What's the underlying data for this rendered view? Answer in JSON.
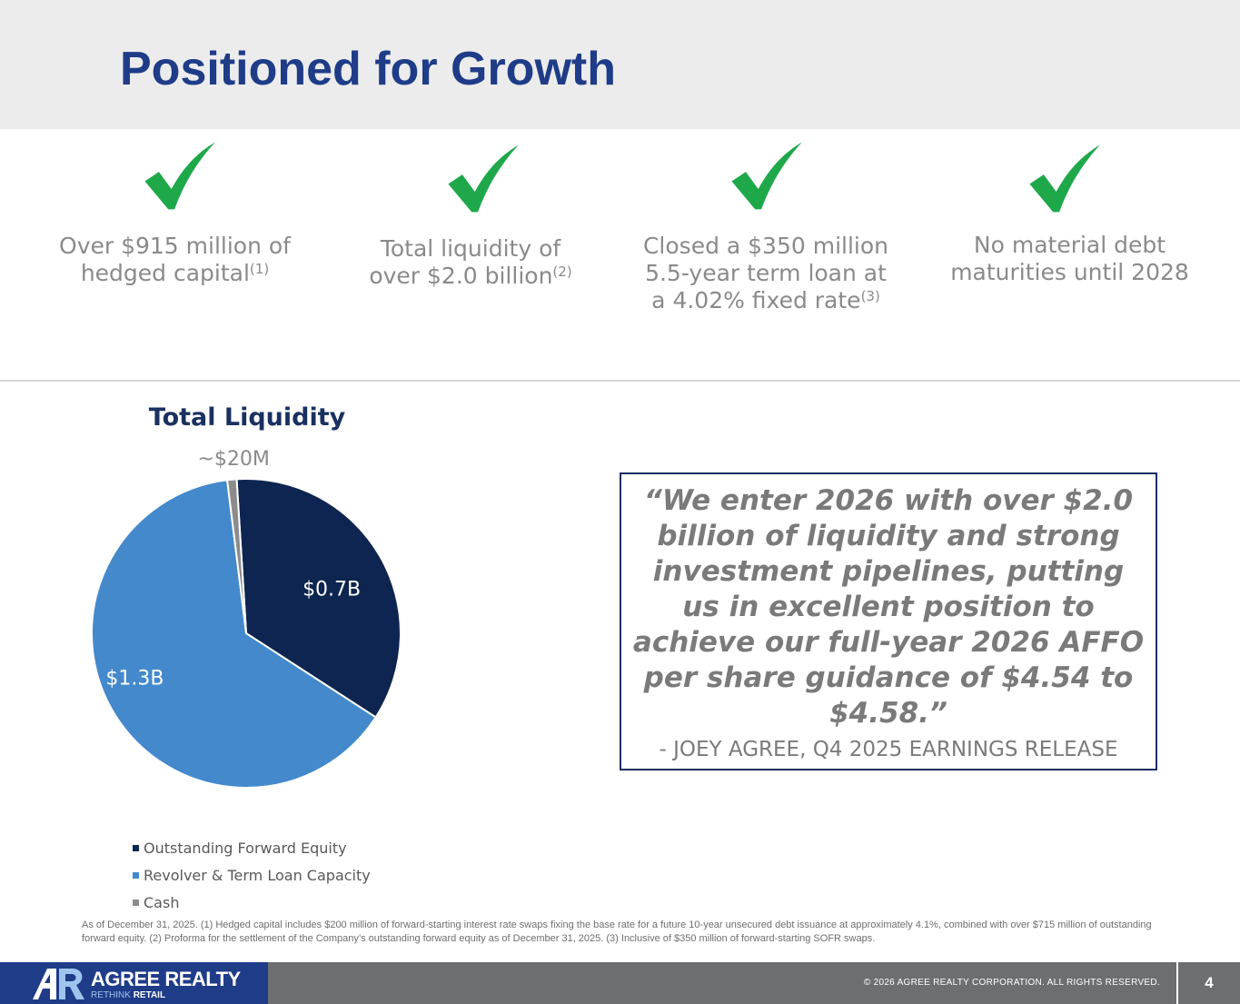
{
  "slide": {
    "title": "Positioned for Growth",
    "page_number": "4"
  },
  "highlights": [
    {
      "line1": "Over $915 million of",
      "line2": "hedged capital",
      "line3": "",
      "note": "(1)"
    },
    {
      "line1": "Total liquidity of",
      "line2": "over $2.0 billion",
      "line3": "",
      "note": "(2)"
    },
    {
      "line1": "Closed a $350 million",
      "line2": "5.5-year term loan at",
      "line3": "a 4.02% fixed rate",
      "note": "(3)"
    },
    {
      "line1": "No material debt",
      "line2": "maturities until 2028",
      "line3": "",
      "note": ""
    }
  ],
  "icons": {
    "check": "checkmark-icon",
    "check_color": "#1fa84a"
  },
  "chart_data": {
    "type": "pie",
    "title": "Total Liquidity",
    "slices": [
      {
        "name": "Outstanding Forward Equity",
        "value": 0.715,
        "label": "$0.7B",
        "color": "#0d2550"
      },
      {
        "name": "Revolver & Term Loan Capacity",
        "value": 1.3,
        "label": "$1.3B",
        "color": "#4389cc"
      },
      {
        "name": "Cash",
        "value": 0.02,
        "label": "~$20M",
        "color": "#8c8c8c"
      }
    ],
    "legend_position": "bottom-left"
  },
  "quote": {
    "text": "“We enter 2026 with over $2.0 billion of liquidity and strong investment pipelines, putting us in excellent position to achieve our full-year 2026 AFFO per share guidance of $4.54 to $4.58.”",
    "attribution": "- JOEY AGREE, Q4 2025 EARNINGS RELEASE"
  },
  "footnote": "As of December 31, 2025. (1) Hedged capital includes $200 million of forward-starting interest rate swaps fixing the base rate for a future 10-year unsecured debt issuance at approximately 4.1%, combined with over $715 million of outstanding forward equity. (2) Proforma for the settlement of the Company’s outstanding forward equity as of December 31, 2025. (3) Inclusive of $350 million of forward-starting SOFR swaps.",
  "footer": {
    "logo_name": "AGREE REALTY",
    "logo_tag_prefix": "RETHINK",
    "logo_tag_suffix": "RETAIL",
    "copyright": "© 2026 AGREE REALTY CORPORATION. ALL RIGHTS RESERVED."
  },
  "colors": {
    "title": "#1f3c88",
    "footer_bar": "#6d6e70",
    "logo_panel": "#1f3c88"
  }
}
